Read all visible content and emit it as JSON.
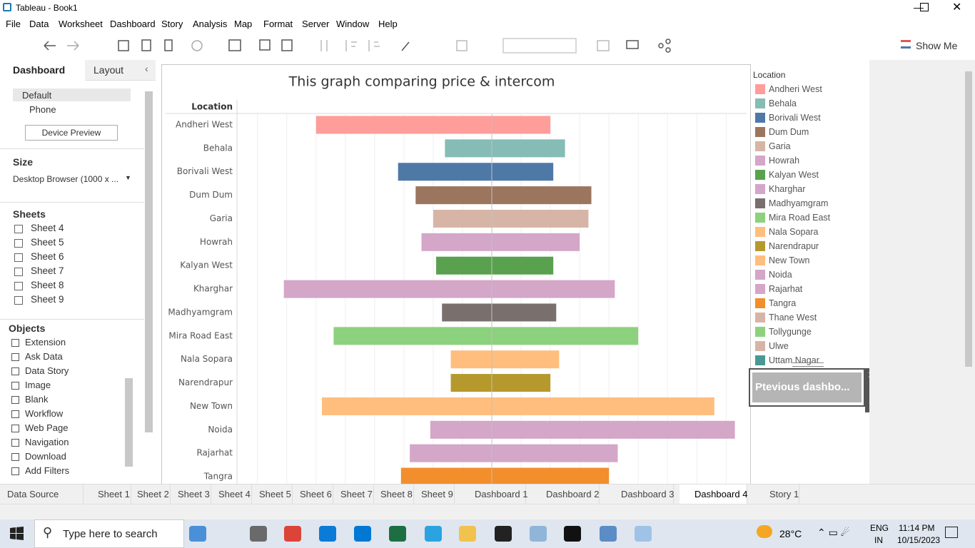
{
  "window": {
    "title": "Tableau - Book1"
  },
  "menu": [
    "File",
    "Data",
    "Worksheet",
    "Dashboard",
    "Story",
    "Analysis",
    "Map",
    "Format",
    "Server",
    "Window",
    "Help"
  ],
  "toolbar": {
    "show_me": "Show Me"
  },
  "side_panel": {
    "tabs": [
      "Dashboard",
      "Layout"
    ],
    "devices": [
      "Default",
      "Phone"
    ],
    "device_preview": "Device Preview",
    "size_heading": "Size",
    "size_value": "Desktop Browser (1000 x ...",
    "sheets_heading": "Sheets",
    "sheets": [
      "Sheet 4",
      "Sheet 5",
      "Sheet 6",
      "Sheet 7",
      "Sheet 8",
      "Sheet 9"
    ],
    "objects_heading": "Objects",
    "objects": [
      "Extension",
      "Ask Data",
      "Data Story",
      "Image",
      "Blank",
      "Workflow",
      "Web Page",
      "Navigation",
      "Download",
      "Add Filters"
    ]
  },
  "chart_data": {
    "type": "range-bar",
    "title": "This graph comparing price & intercom",
    "y_label": "Location",
    "categories": [
      "Andheri West",
      "Behala",
      "Borivali West",
      "Dum Dum",
      "Garia",
      "Howrah",
      "Kalyan West",
      "Kharghar",
      "Madhyamgram",
      "Mira Road East",
      "Nala Sopara",
      "Narendrapur",
      "New Town",
      "Noida",
      "Rajarhat",
      "Tangra"
    ],
    "starts": [
      -6.0,
      -1.6,
      -3.2,
      -2.6,
      -2.0,
      -2.4,
      -1.9,
      -7.1,
      -1.7,
      -5.4,
      -1.4,
      -1.4,
      -5.8,
      -2.1,
      -2.8,
      -3.1
    ],
    "ends": [
      2.0,
      2.5,
      2.1,
      3.4,
      3.3,
      3.0,
      2.1,
      4.2,
      2.2,
      5.0,
      2.3,
      2.0,
      7.6,
      8.3,
      4.3,
      4.0
    ],
    "colors": [
      "#ff9d9a",
      "#86bcb6",
      "#4e79a7",
      "#9c755f",
      "#d7b5a6",
      "#d4a6c8",
      "#59a14f",
      "#d4a6c8",
      "#79706e",
      "#8cd17d",
      "#ffbe7d",
      "#b6992d",
      "#ffbe7d",
      "#d4a6c8",
      "#d4a6c8",
      "#f28e2b"
    ],
    "xlim": [
      -8.7,
      8.7
    ],
    "xgrid": [
      -8,
      -7,
      -6,
      -5,
      -4,
      -3,
      -2,
      -1,
      1,
      2,
      3,
      4,
      5,
      6,
      7,
      8
    ],
    "reference_line": 0,
    "legend": {
      "title": "Location",
      "names": [
        "Andheri West",
        "Behala",
        "Borivali West",
        "Dum Dum",
        "Garia",
        "Howrah",
        "Kalyan West",
        "Kharghar",
        "Madhyamgram",
        "Mira Road East",
        "Nala Sopara",
        "Narendrapur",
        "New Town",
        "Noida",
        "Rajarhat",
        "Tangra",
        "Thane West",
        "Tollygunge",
        "Ulwe",
        "Uttam Nagar"
      ],
      "colors": [
        "#ff9d9a",
        "#86bcb6",
        "#4e79a7",
        "#9c755f",
        "#d7b5a6",
        "#d4a6c8",
        "#59a14f",
        "#d4a6c8",
        "#79706e",
        "#8cd17d",
        "#ffbe7d",
        "#b6992d",
        "#ffbe7d",
        "#d4a6c8",
        "#d4a6c8",
        "#f28e2b",
        "#d7b5a6",
        "#8cd17d",
        "#d7b5a6",
        "#499894"
      ]
    }
  },
  "button": {
    "label": "Ptevious dashbo..."
  },
  "tabs": [
    "Data Source",
    "Sheet 1",
    "Sheet 2",
    "Sheet 3",
    "Sheet 4",
    "Sheet 5",
    "Sheet 6",
    "Sheet 7",
    "Sheet 8",
    "Sheet 9",
    "Dashboard 1",
    "Dashboard 2",
    "Dashboard 3",
    "Dashboard 4",
    "Story 1"
  ],
  "taskbar": {
    "search": "Type here to search",
    "weather": "28°C",
    "lang": "ENG",
    "region": "IN",
    "time": "11:14 PM",
    "date": "10/15/2023"
  }
}
